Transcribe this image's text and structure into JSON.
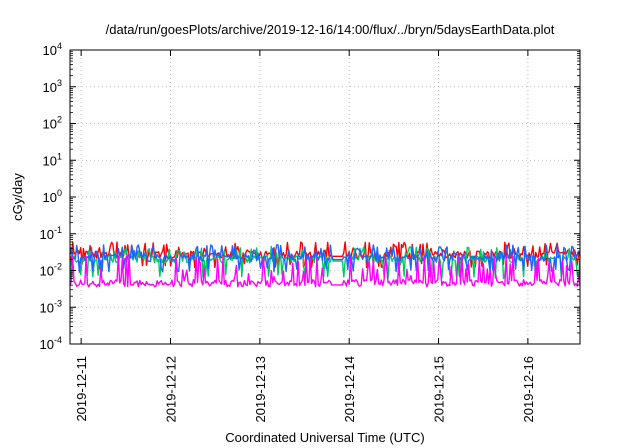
{
  "chart_data": {
    "type": "line",
    "title": "/data/run/goesPlots/archive/2019-12-16/14:00/flux/../bryn/5daysEarthData.plot",
    "xlabel": "Coordinated Universal Time (UTC)",
    "ylabel": "cGy/day",
    "yscale": "log",
    "ylim": [
      0.0001,
      10000
    ],
    "xlim": [
      "2019-12-10T21:00",
      "2019-12-16T14:00"
    ],
    "grid": true,
    "legend": "none",
    "x_ticks": [
      "2019-12-11",
      "2019-12-12",
      "2019-12-13",
      "2019-12-14",
      "2019-12-15",
      "2019-12-16"
    ],
    "y_ticks": [
      {
        "value": 0.0001,
        "mant": "10",
        "exp": "-4"
      },
      {
        "value": 0.001,
        "mant": "10",
        "exp": "-3"
      },
      {
        "value": 0.01,
        "mant": "10",
        "exp": "-2"
      },
      {
        "value": 0.1,
        "mant": "10",
        "exp": "-1"
      },
      {
        "value": 1,
        "mant": "10",
        "exp": "0"
      },
      {
        "value": 10,
        "mant": "10",
        "exp": "1"
      },
      {
        "value": 100,
        "mant": "10",
        "exp": "2"
      },
      {
        "value": 1000,
        "mant": "10",
        "exp": "3"
      },
      {
        "value": 10000,
        "mant": "10",
        "exp": "4"
      }
    ],
    "series": [
      {
        "color": "#ff0000",
        "baseline": 0.027,
        "spike_max": 0.06,
        "dip_min": 0.012
      },
      {
        "color": "#00c864",
        "baseline": 0.02,
        "spike_max": 0.045,
        "dip_min": 0.006
      },
      {
        "color": "#1e64ff",
        "baseline": 0.022,
        "spike_max": 0.05,
        "dip_min": 0.009
      },
      {
        "color": "#ff00ff",
        "baseline": 0.0045,
        "spike_max": 0.025,
        "dip_min": 0.0038
      }
    ]
  }
}
